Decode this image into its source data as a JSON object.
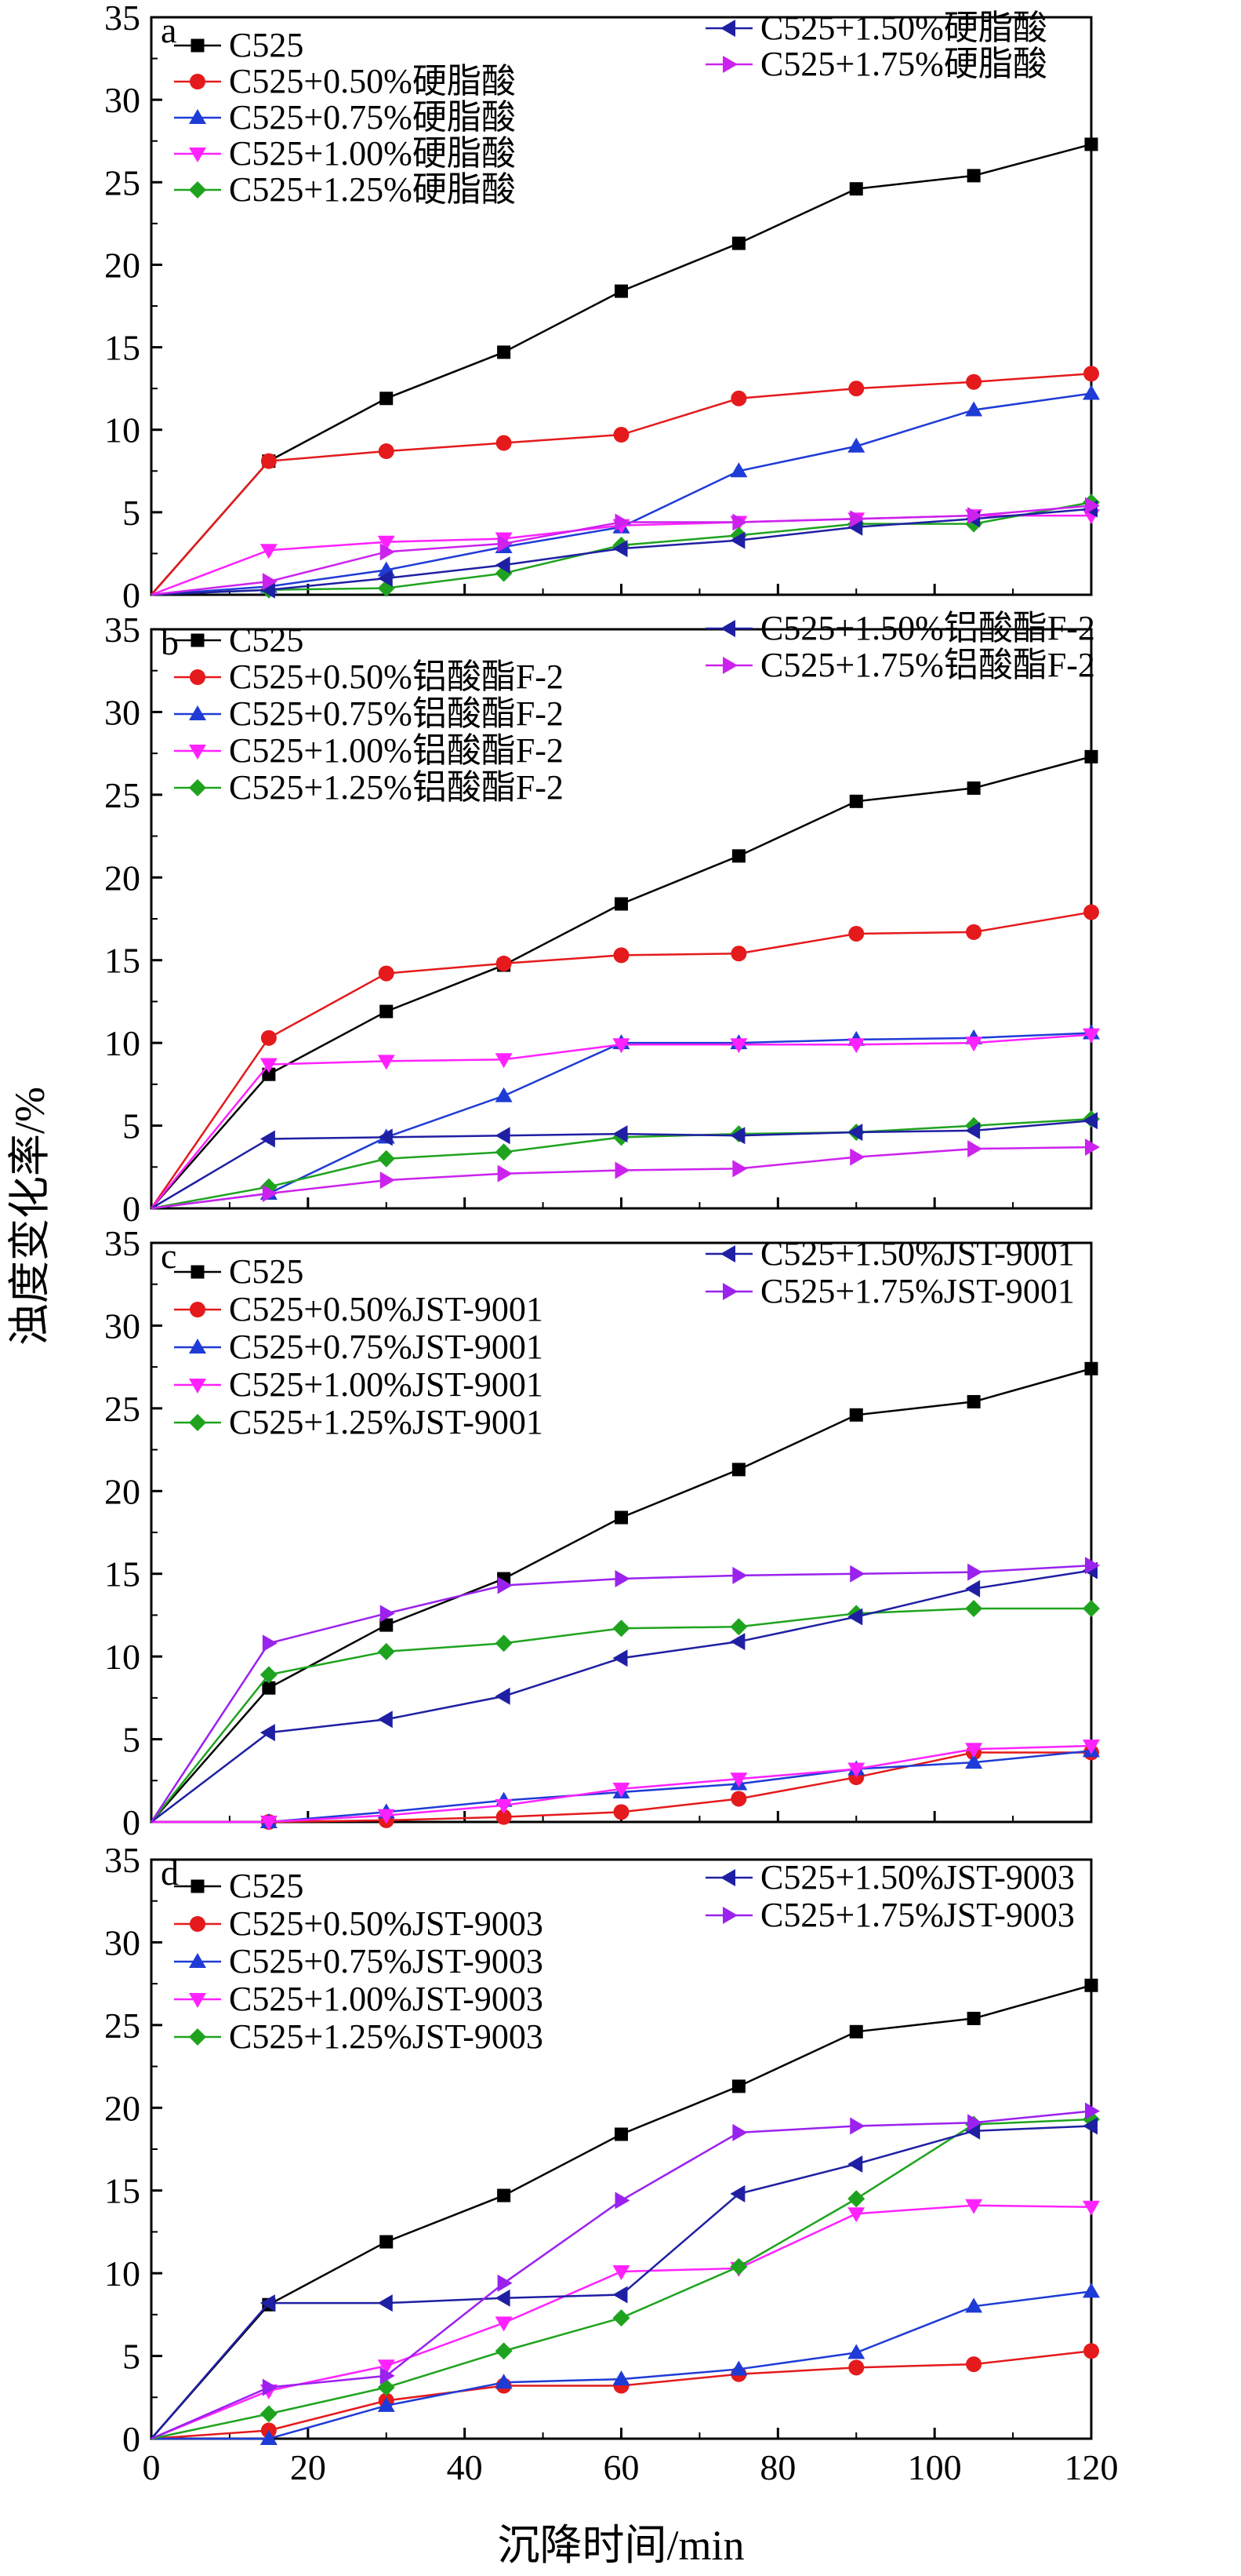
{
  "ylabel": "浊度变化率/%",
  "xlabel": "沉降时间/min",
  "x_ticks": [
    0,
    20,
    40,
    60,
    80,
    100,
    120
  ],
  "y_ticks": [
    0,
    5,
    10,
    15,
    20,
    25,
    30,
    35
  ],
  "chart_data": [
    {
      "type": "line",
      "panel": "a",
      "x": [
        0,
        15,
        30,
        45,
        60,
        75,
        90,
        105,
        120
      ],
      "xlim": [
        0,
        120
      ],
      "ylim": [
        0,
        35
      ],
      "grid": false,
      "legend_placement": "top",
      "series": [
        {
          "name": "C525",
          "color": "#000000",
          "marker": "square",
          "values": [
            0,
            8.1,
            11.9,
            14.7,
            18.4,
            21.3,
            24.6,
            25.4,
            27.3
          ]
        },
        {
          "name": "C525+0.50%硬脂酸",
          "color": "#e41a1c",
          "marker": "circle",
          "values": [
            0,
            8.1,
            8.7,
            9.2,
            9.7,
            11.9,
            12.5,
            12.9,
            13.4
          ]
        },
        {
          "name": "C525+0.75%硬脂酸",
          "color": "#1f3bd6",
          "marker": "triangle-up",
          "values": [
            0,
            0.5,
            1.5,
            2.9,
            4.1,
            7.5,
            9.0,
            11.2,
            12.2
          ]
        },
        {
          "name": "C525+1.00%硬脂酸",
          "color": "#ff22ff",
          "marker": "triangle-down",
          "values": [
            0,
            2.7,
            3.2,
            3.4,
            4.2,
            4.4,
            4.6,
            4.8,
            4.8
          ]
        },
        {
          "name": "C525+1.25%硬脂酸",
          "color": "#1fa31f",
          "marker": "diamond",
          "values": [
            0,
            0.3,
            0.4,
            1.3,
            3.0,
            3.6,
            4.3,
            4.3,
            5.6
          ]
        },
        {
          "name": "C525+1.50%硬脂酸",
          "color": "#1f1fa3",
          "marker": "triangle-left",
          "values": [
            0,
            0.3,
            1.0,
            1.8,
            2.8,
            3.3,
            4.1,
            4.6,
            5.2
          ]
        },
        {
          "name": "C525+1.75%硬脂酸",
          "color": "#cc22ee",
          "marker": "triangle-right",
          "values": [
            0,
            0.8,
            2.6,
            3.1,
            4.4,
            4.4,
            4.6,
            4.8,
            5.4
          ]
        }
      ]
    },
    {
      "type": "line",
      "panel": "b",
      "x": [
        0,
        15,
        30,
        45,
        60,
        75,
        90,
        105,
        120
      ],
      "xlim": [
        0,
        120
      ],
      "ylim": [
        0,
        35
      ],
      "grid": false,
      "legend_placement": "top",
      "series": [
        {
          "name": "C525",
          "color": "#000000",
          "marker": "square",
          "values": [
            0,
            8.1,
            11.9,
            14.7,
            18.4,
            21.3,
            24.6,
            25.4,
            27.3
          ]
        },
        {
          "name": "C525+0.50%铝酸酯F-2",
          "color": "#e41a1c",
          "marker": "circle",
          "values": [
            0,
            10.3,
            14.2,
            14.8,
            15.3,
            15.4,
            16.6,
            16.7,
            17.9
          ]
        },
        {
          "name": "C525+0.75%铝酸酯F-2",
          "color": "#1f3bd6",
          "marker": "triangle-up",
          "values": [
            0,
            0.9,
            4.3,
            6.8,
            10.0,
            10.0,
            10.2,
            10.3,
            10.6
          ]
        },
        {
          "name": "C525+1.00%铝酸酯F-2",
          "color": "#ff22ff",
          "marker": "triangle-down",
          "values": [
            0,
            8.7,
            8.9,
            9.0,
            9.9,
            9.9,
            9.9,
            10.0,
            10.5
          ]
        },
        {
          "name": "C525+1.25%铝酸酯F-2",
          "color": "#1fa31f",
          "marker": "diamond",
          "values": [
            0,
            1.3,
            3.0,
            3.4,
            4.3,
            4.5,
            4.6,
            5.0,
            5.4
          ]
        },
        {
          "name": "C525+1.50%铝酸酯F-2",
          "color": "#1f1fa3",
          "marker": "triangle-left",
          "values": [
            0,
            4.2,
            4.3,
            4.4,
            4.5,
            4.4,
            4.6,
            4.7,
            5.3
          ]
        },
        {
          "name": "C525+1.75%铝酸酯F-2",
          "color": "#cc22ee",
          "marker": "triangle-right",
          "values": [
            0,
            0.9,
            1.7,
            2.1,
            2.3,
            2.4,
            3.1,
            3.6,
            3.7
          ]
        }
      ]
    },
    {
      "type": "line",
      "panel": "c",
      "x": [
        0,
        15,
        30,
        45,
        60,
        75,
        90,
        105,
        120
      ],
      "xlim": [
        0,
        120
      ],
      "ylim": [
        0,
        35
      ],
      "grid": false,
      "legend_placement": "top",
      "series": [
        {
          "name": "C525",
          "color": "#000000",
          "marker": "square",
          "values": [
            0,
            8.1,
            11.9,
            14.7,
            18.4,
            21.3,
            24.6,
            25.4,
            27.4
          ]
        },
        {
          "name": "C525+0.50%JST-9001",
          "color": "#e41a1c",
          "marker": "circle",
          "values": [
            0,
            0,
            0.1,
            0.3,
            0.6,
            1.4,
            2.7,
            4.2,
            4.2
          ]
        },
        {
          "name": "C525+0.75%JST-9001",
          "color": "#1f3bd6",
          "marker": "triangle-up",
          "values": [
            0,
            0,
            0.6,
            1.3,
            1.8,
            2.3,
            3.2,
            3.6,
            4.3
          ]
        },
        {
          "name": "C525+1.00%JST-9001",
          "color": "#ff22ff",
          "marker": "triangle-down",
          "values": [
            0,
            0,
            0.4,
            1.0,
            2.0,
            2.6,
            3.2,
            4.4,
            4.6
          ]
        },
        {
          "name": "C525+1.25%JST-9001",
          "color": "#1fa31f",
          "marker": "diamond",
          "values": [
            0,
            8.9,
            10.3,
            10.8,
            11.7,
            11.8,
            12.6,
            12.9,
            12.9
          ]
        },
        {
          "name": "C525+1.50%JST-9001",
          "color": "#1f1fa3",
          "marker": "triangle-left",
          "values": [
            0,
            5.4,
            6.2,
            7.6,
            9.9,
            10.9,
            12.4,
            14.1,
            15.2
          ]
        },
        {
          "name": "C525+1.75%JST-9001",
          "color": "#9b22ee",
          "marker": "triangle-right",
          "values": [
            0,
            10.8,
            12.6,
            14.3,
            14.7,
            14.9,
            15.0,
            15.1,
            15.5
          ]
        }
      ]
    },
    {
      "type": "line",
      "panel": "d",
      "x": [
        0,
        15,
        30,
        45,
        60,
        75,
        90,
        105,
        120
      ],
      "xlim": [
        0,
        120
      ],
      "ylim": [
        0,
        35
      ],
      "grid": false,
      "legend_placement": "top",
      "series": [
        {
          "name": "C525",
          "color": "#000000",
          "marker": "square",
          "values": [
            0,
            8.1,
            11.9,
            14.7,
            18.4,
            21.3,
            24.6,
            25.4,
            27.4
          ]
        },
        {
          "name": "C525+0.50%JST-9003",
          "color": "#e41a1c",
          "marker": "circle",
          "values": [
            0,
            0.5,
            2.3,
            3.2,
            3.2,
            3.9,
            4.3,
            4.5,
            5.3
          ]
        },
        {
          "name": "C525+0.75%JST-9003",
          "color": "#1f3bd6",
          "marker": "triangle-up",
          "values": [
            0,
            0,
            2.0,
            3.4,
            3.6,
            4.2,
            5.2,
            8.0,
            8.9
          ]
        },
        {
          "name": "C525+1.00%JST-9003",
          "color": "#ff22ff",
          "marker": "triangle-down",
          "values": [
            0,
            2.9,
            4.4,
            7.0,
            10.1,
            10.3,
            13.6,
            14.1,
            14.0
          ]
        },
        {
          "name": "C525+1.25%JST-9003",
          "color": "#1fa31f",
          "marker": "diamond",
          "values": [
            0,
            1.5,
            3.1,
            5.3,
            7.3,
            10.4,
            14.5,
            19.0,
            19.3
          ]
        },
        {
          "name": "C525+1.50%JST-9003",
          "color": "#1f1fa3",
          "marker": "triangle-left",
          "values": [
            0,
            8.2,
            8.2,
            8.5,
            8.7,
            14.8,
            16.6,
            18.6,
            18.9
          ]
        },
        {
          "name": "C525+1.75%JST-9003",
          "color": "#9b22ee",
          "marker": "triangle-right",
          "values": [
            0,
            3.1,
            3.8,
            9.4,
            14.4,
            18.5,
            18.9,
            19.1,
            19.8
          ]
        }
      ]
    }
  ]
}
